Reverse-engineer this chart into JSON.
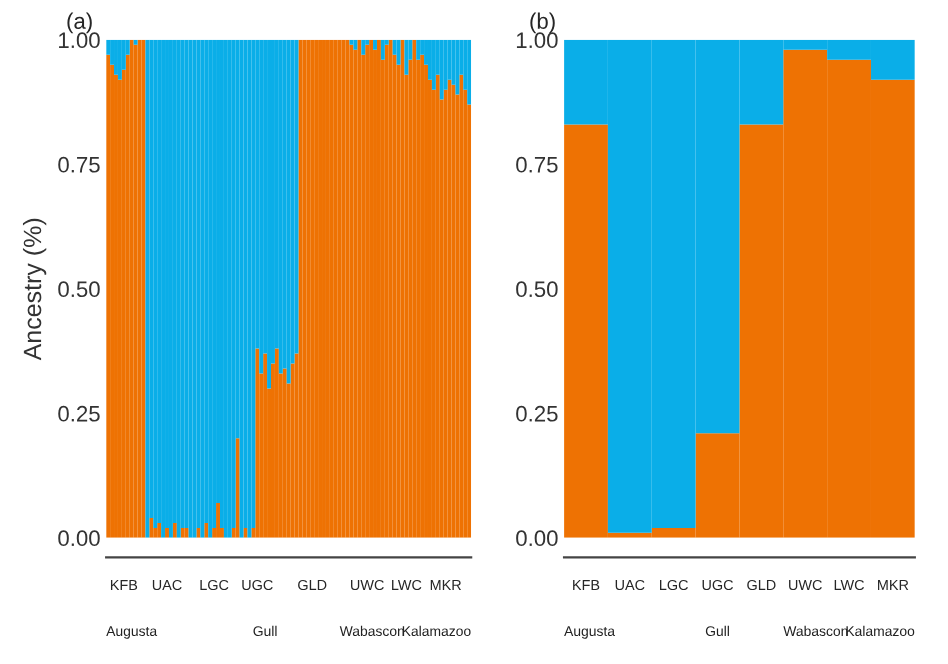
{
  "chart_data": [
    {
      "type": "bar",
      "title": "(a)",
      "ylabel": "Ancestry (%)",
      "stacked": true,
      "grid": false,
      "categories": [
        null,
        null,
        null,
        null,
        "KFB",
        null,
        null,
        null,
        null,
        null,
        null,
        null,
        null,
        null,
        null,
        "UAC",
        null,
        null,
        null,
        null,
        null,
        null,
        null,
        null,
        null,
        null,
        null,
        "LGC",
        null,
        null,
        null,
        null,
        null,
        null,
        null,
        null,
        null,
        null,
        "UGC",
        null,
        null,
        null,
        null,
        null,
        null,
        null,
        null,
        null,
        null,
        null,
        null,
        null,
        "GLD",
        null,
        null,
        null,
        null,
        null,
        null,
        null,
        null,
        null,
        null,
        null,
        null,
        null,
        "UWC",
        null,
        null,
        null,
        null,
        null,
        null,
        null,
        null,
        null,
        "LWC",
        null,
        null,
        null,
        null,
        null,
        null,
        null,
        null,
        null,
        "MKR",
        null,
        null,
        null,
        null,
        null,
        null
      ],
      "series": [
        {
          "color": "#ee7203",
          "values": [
            0.97,
            0.95,
            0.93,
            0.92,
            0.94,
            0.97,
            1,
            0.99,
            1,
            1,
            0,
            0.04,
            0.02,
            0.03,
            0,
            0.02,
            0,
            0.03,
            0,
            0.02,
            0.02,
            0,
            0,
            0.02,
            0,
            0.03,
            0,
            0.02,
            0.07,
            0.02,
            0,
            0,
            0.02,
            0.2,
            0,
            0.02,
            0,
            0.02,
            0.38,
            0.33,
            0.37,
            0.3,
            0.35,
            0.38,
            0.33,
            0.34,
            0.31,
            0.35,
            0.37,
            1,
            1,
            1,
            1,
            1,
            1,
            1,
            1,
            1,
            1,
            1,
            1,
            1,
            0.99,
            0.98,
            1,
            0.97,
            0.99,
            1,
            0.98,
            1,
            0.96,
            0.99,
            1,
            0.97,
            0.95,
            1,
            0.93,
            0.96,
            1,
            0.96,
            0.97,
            0.95,
            0.92,
            0.9,
            0.93,
            0.88,
            0.9,
            0.92,
            0.91,
            0.89,
            0.93,
            0.9,
            0.87
          ]
        },
        {
          "color": "#0aaee8",
          "values": [
            0.03,
            0.05,
            0.07,
            0.08,
            0.06,
            0.03,
            0,
            0.01,
            0,
            0,
            1,
            0.96,
            0.98,
            0.97,
            1,
            0.98,
            1,
            0.97,
            1,
            0.98,
            0.98,
            1,
            1,
            0.98,
            1,
            0.97,
            1,
            0.98,
            0.93,
            0.98,
            1,
            1,
            0.98,
            0.8,
            1,
            0.98,
            1,
            0.98,
            0.62,
            0.67,
            0.63,
            0.7,
            0.65,
            0.62,
            0.67,
            0.66,
            0.69,
            0.65,
            0.63,
            0,
            0,
            0,
            0,
            0,
            0,
            0,
            0,
            0,
            0,
            0,
            0,
            0,
            0.01,
            0.02,
            0,
            0.03,
            0.01,
            0,
            0.02,
            0,
            0.04,
            0.01,
            0,
            0.03,
            0.05,
            0,
            0.07,
            0.04,
            0,
            0.04,
            0.03,
            0.05,
            0.08,
            0.1,
            0.07,
            0.12,
            0.1,
            0.08,
            0.09,
            0.11,
            0.07,
            0.1,
            0.13
          ]
        }
      ],
      "ylim": [
        0,
        1
      ],
      "yticks": [
        {
          "value": 0,
          "label": "0.00"
        },
        {
          "value": 0.25,
          "label": "0.25"
        },
        {
          "value": 0.5,
          "label": "0.50"
        },
        {
          "value": 0.75,
          "label": "0.75"
        },
        {
          "value": 1,
          "label": "1.00"
        }
      ],
      "annotations": [
        "Augusta",
        "Gull",
        "Wabascon",
        "Kalamazoo"
      ]
    },
    {
      "type": "bar",
      "title": "(b)",
      "stacked": true,
      "grid": false,
      "categories": [
        "KFB",
        "UAC",
        "LGC",
        "UGC",
        "GLD",
        "UWC",
        "LWC",
        "MKR"
      ],
      "series": [
        {
          "color": "#ee7203",
          "values": [
            0.83,
            0.01,
            0.02,
            0.21,
            0.83,
            0.98,
            0.96,
            0.92
          ]
        },
        {
          "color": "#0aaee8",
          "values": [
            0.17,
            0.99,
            0.98,
            0.79,
            0.17,
            0.02,
            0.04,
            0.08
          ]
        }
      ],
      "ylim": [
        0,
        1
      ],
      "yticks": [
        {
          "value": 0,
          "label": "0.00"
        },
        {
          "value": 0.25,
          "label": "0.25"
        },
        {
          "value": 0.5,
          "label": "0.50"
        },
        {
          "value": 0.75,
          "label": "0.75"
        },
        {
          "value": 1,
          "label": "1.00"
        }
      ],
      "annotations": [
        "Augusta",
        "Gull",
        "Wabascon",
        "Kalamazoo"
      ]
    }
  ]
}
